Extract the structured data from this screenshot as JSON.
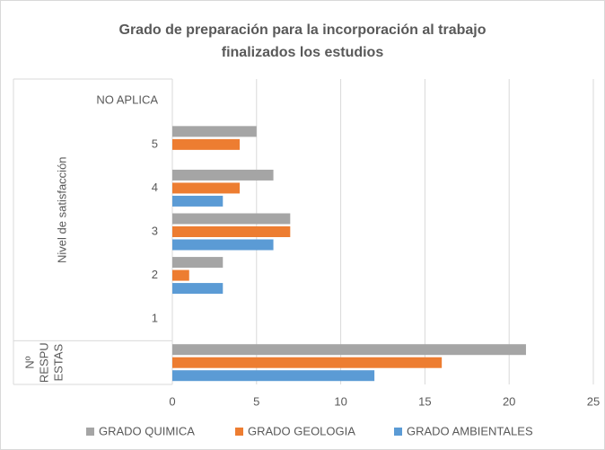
{
  "chart_data": {
    "type": "bar",
    "orientation": "horizontal",
    "title": [
      "Grado de preparación para la incorporación al trabajo",
      "finalizados los estudios"
    ],
    "categories": [
      "NO APLICA",
      "5",
      "4",
      "3",
      "2",
      "1",
      null
    ],
    "category_groups": [
      [
        "Nivel de satisfacción"
      ],
      [
        "Nº",
        "RESPU",
        "ESTAS"
      ]
    ],
    "series": [
      {
        "name": "GRADO QUIMICA",
        "color": "#a5a5a5",
        "values": [
          0,
          5,
          6,
          7,
          3,
          0,
          21
        ]
      },
      {
        "name": "GRADO GEOLOGIA",
        "color": "#ed7d31",
        "values": [
          0,
          4,
          4,
          7,
          1,
          0,
          16
        ]
      },
      {
        "name": "GRADO AMBIENTALES",
        "color": "#5b9bd5",
        "values": [
          0,
          0,
          3,
          6,
          3,
          0,
          12
        ]
      }
    ],
    "xlim": [
      0,
      25
    ],
    "xticks": [
      0,
      5,
      10,
      15,
      20,
      25
    ],
    "grid": true,
    "legend": "bottom"
  }
}
